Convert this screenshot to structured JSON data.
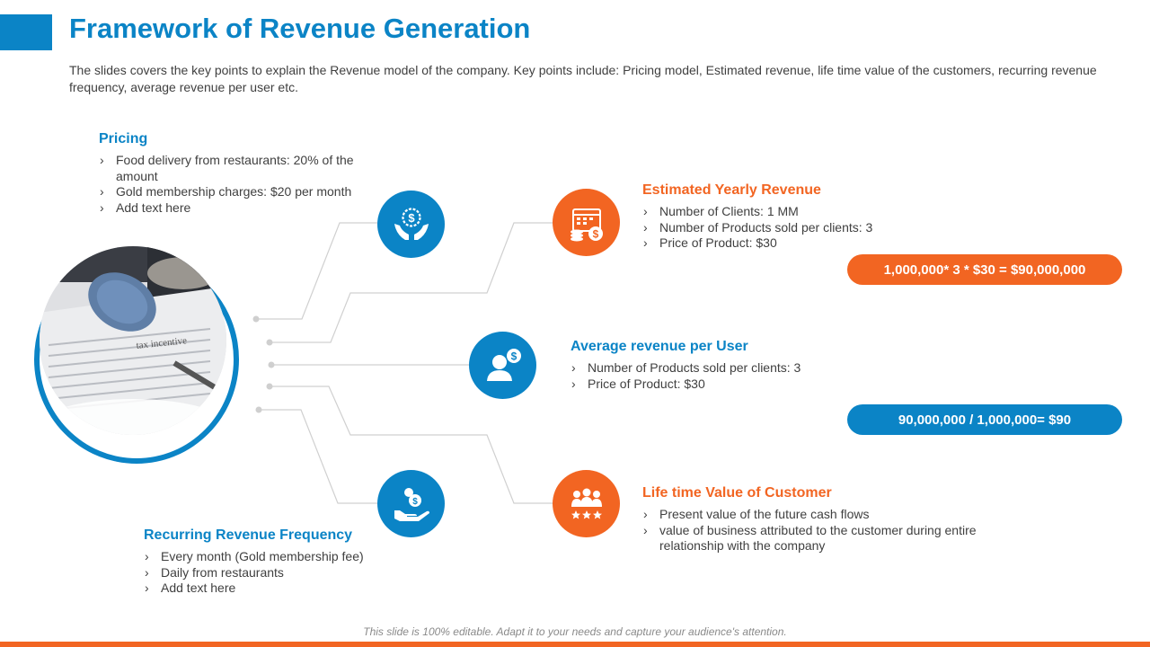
{
  "slide": {
    "title": "Framework of Revenue Generation",
    "subtitle": "The slides covers the key points to explain the Revenue model of the company. Key points include: Pricing model, Estimated revenue, life time value of the customers, recurring revenue frequency, average revenue per user etc.",
    "footnote": "This slide is 100% editable. Adapt it to your needs and capture your audience's attention."
  },
  "colors": {
    "blue": "#0b84c6",
    "orange": "#f26522"
  },
  "pricing": {
    "title": "Pricing",
    "icon": "hands-dollar-icon",
    "items": [
      "Food delivery from restaurants: 20% of the amount",
      "Gold membership charges: $20 per month",
      "Add text here"
    ]
  },
  "estimated_revenue": {
    "title": "Estimated Yearly Revenue",
    "icon": "calendar-coins-icon",
    "items": [
      "Number of Clients: 1 MM",
      "Number of Products sold per clients: 3",
      "Price of Product: $30"
    ],
    "formula": "1,000,000* 3 * $30 = $90,000,000"
  },
  "arpu": {
    "title": "Average revenue per User",
    "icon": "user-dollar-icon",
    "items": [
      "Number of Products sold per clients: 3",
      "Price of Product: $30"
    ],
    "formula": "90,000,000 / 1,000,000= $90"
  },
  "ltv": {
    "title": "Life time Value of Customer",
    "icon": "customers-stars-icon",
    "items": [
      "Present value of the future cash flows",
      "value of business attributed to the customer during entire relationship with the company"
    ]
  },
  "recurring": {
    "title": "Recurring Revenue Frequency",
    "icon": "hand-coins-icon",
    "items": [
      "Every month (Gold membership fee)",
      "Daily from restaurants",
      "Add text here"
    ]
  },
  "photo": {
    "caption_text": "tax incentive"
  }
}
